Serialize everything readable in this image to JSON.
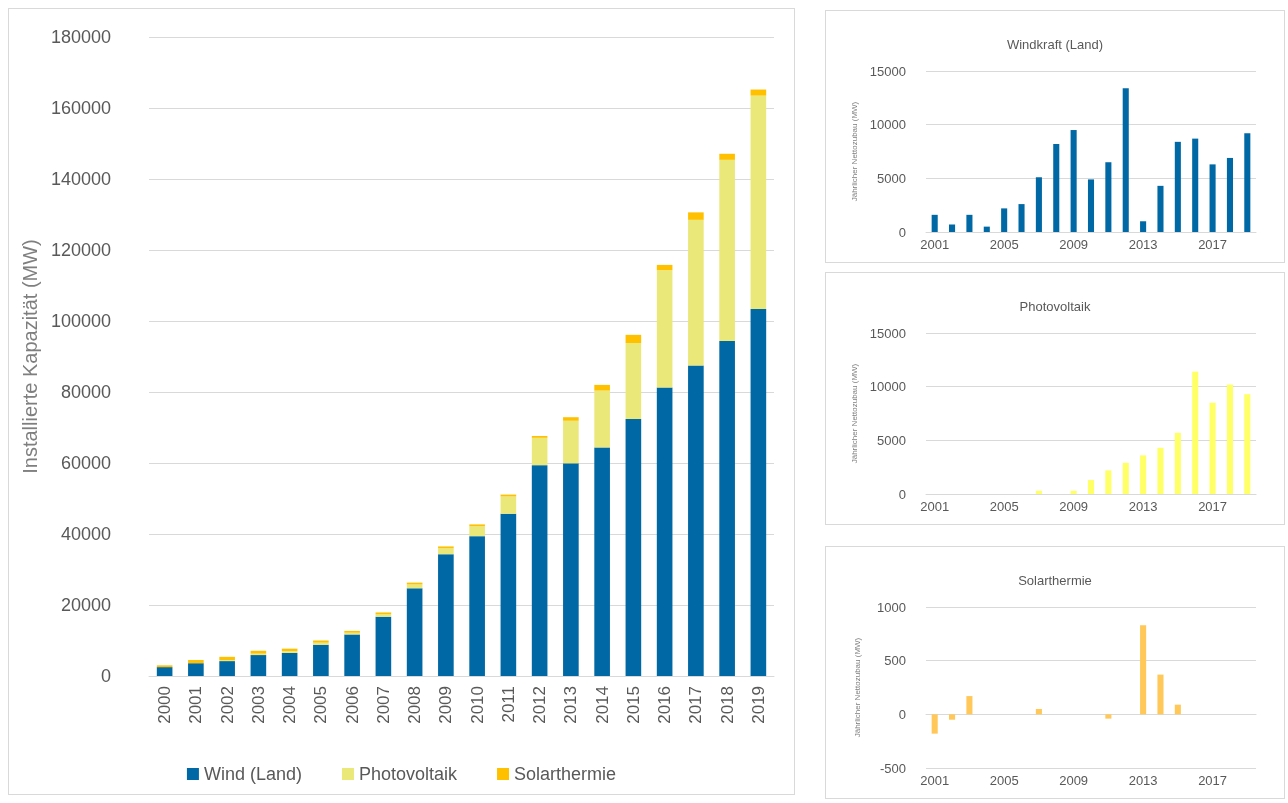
{
  "chart_data": [
    {
      "type": "bar",
      "ylabel": "Installierte Kapazität (MW)",
      "categories": [
        "2000",
        "2001",
        "2002",
        "2003",
        "2004",
        "2005",
        "2006",
        "2007",
        "2008",
        "2009",
        "2010",
        "2011",
        "2012",
        "2013",
        "2014",
        "2015",
        "2016",
        "2017",
        "2018",
        "2019"
      ],
      "stacked": true,
      "ylim": [
        0,
        180000
      ],
      "yticks": [
        0,
        20000,
        40000,
        60000,
        80000,
        100000,
        120000,
        140000,
        160000,
        180000
      ],
      "grid": "y",
      "legend": "bottom",
      "series": [
        {
          "name": "Wind (Land)",
          "color": "#0068a4",
          "values": [
            2500,
            3600,
            4200,
            5900,
            6500,
            8800,
            11700,
            16700,
            24700,
            34300,
            39400,
            45700,
            59400,
            59900,
            64400,
            72400,
            81300,
            87500,
            94400,
            103400
          ]
        },
        {
          "name": "Photovoltaik",
          "color": "#ebe87a",
          "values": [
            null,
            null,
            300,
            400,
            500,
            600,
            500,
            700,
            1100,
            1700,
            2800,
            4900,
            7700,
            12000,
            16000,
            21400,
            33000,
            41000,
            51000,
            60100
          ]
        },
        {
          "name": "Solarthermie",
          "color": "#ffc000",
          "values": [
            500,
            900,
            900,
            800,
            700,
            600,
            500,
            500,
            500,
            500,
            500,
            500,
            500,
            1000,
            1600,
            2300,
            1500,
            2100,
            1700,
            1700
          ]
        }
      ]
    },
    {
      "type": "bar",
      "title": "Windkraft (Land)",
      "ylabel": "Jährlicher Nettozubau (MW)",
      "categories": [
        "2001",
        null,
        null,
        null,
        "2005",
        null,
        null,
        null,
        "2009",
        null,
        null,
        null,
        "2013",
        null,
        null,
        null,
        "2017",
        null,
        null
      ],
      "ylim": [
        0,
        15000
      ],
      "yticks": [
        0,
        5000,
        10000,
        15000
      ],
      "grid": "y",
      "color": "#0068a4",
      "values": [
        1600,
        700,
        1600,
        500,
        2200,
        2600,
        5100,
        8200,
        9500,
        4900,
        6500,
        13400,
        1000,
        4300,
        8400,
        8700,
        6300,
        6900,
        9200
      ]
    },
    {
      "type": "bar",
      "title": "Photovoltaik",
      "ylabel": "Jährlicher Nettozubau (MW)",
      "categories": [
        "2001",
        null,
        null,
        null,
        "2005",
        null,
        null,
        null,
        "2009",
        null,
        null,
        null,
        "2013",
        null,
        null,
        null,
        "2017",
        null,
        null
      ],
      "ylim": [
        0,
        15000
      ],
      "yticks": [
        0,
        5000,
        10000,
        15000
      ],
      "grid": "y",
      "color": "#ffff66",
      "values": [
        0,
        0,
        0,
        0,
        0,
        0,
        300,
        0,
        300,
        1300,
        2200,
        2900,
        3600,
        4300,
        5700,
        11400,
        8500,
        10200,
        9300
      ]
    },
    {
      "type": "bar",
      "title": "Solarthermie",
      "ylabel": "Jährlicher Nettozubau (MW)",
      "categories": [
        "2001",
        null,
        null,
        null,
        "2005",
        null,
        null,
        null,
        "2009",
        null,
        null,
        null,
        "2013",
        null,
        null,
        null,
        "2017",
        null,
        null
      ],
      "ylim": [
        -500,
        1000
      ],
      "yticks": [
        -500,
        0,
        500,
        1000
      ],
      "grid": "y",
      "color": "#ffc859",
      "values": [
        -180,
        -50,
        170,
        0,
        0,
        0,
        50,
        0,
        0,
        0,
        -40,
        0,
        830,
        370,
        90,
        0,
        0,
        0,
        0
      ]
    }
  ]
}
